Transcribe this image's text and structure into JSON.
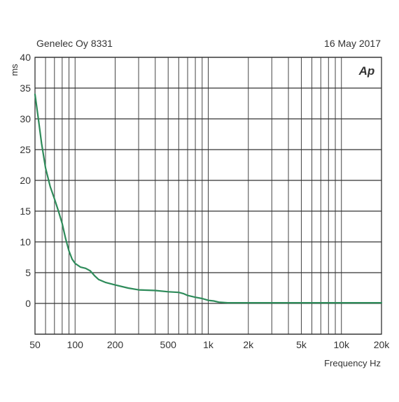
{
  "header": {
    "left": "Genelec Oy 8331",
    "right": "16 May 2017",
    "logo": "Ap"
  },
  "chart_data": {
    "type": "line",
    "title": "",
    "xlabel": "Frequency Hz",
    "ylabel": "ms",
    "xscale": "log",
    "xlim": [
      50,
      20000
    ],
    "ylim": [
      -5,
      40
    ],
    "grid": true,
    "legend": "none",
    "x_ticks": [
      {
        "value": 50,
        "label": "50"
      },
      {
        "value": 100,
        "label": "100"
      },
      {
        "value": 200,
        "label": "200"
      },
      {
        "value": 500,
        "label": "500"
      },
      {
        "value": 1000,
        "label": "1k"
      },
      {
        "value": 2000,
        "label": "2k"
      },
      {
        "value": 5000,
        "label": "5k"
      },
      {
        "value": 10000,
        "label": "10k"
      },
      {
        "value": 20000,
        "label": "20k"
      }
    ],
    "y_ticks": [
      0,
      5,
      10,
      15,
      20,
      25,
      30,
      35,
      40
    ],
    "series": [
      {
        "color": "#2e8b5a",
        "x": [
          50,
          53,
          56,
          60,
          65,
          70,
          75,
          80,
          85,
          90,
          95,
          100,
          110,
          120,
          130,
          140,
          150,
          170,
          200,
          250,
          300,
          400,
          500,
          600,
          650,
          700,
          800,
          900,
          1000,
          1100,
          1200,
          1400,
          2000,
          5000,
          10000,
          20000
        ],
        "y": [
          34,
          30,
          26,
          22,
          19,
          17,
          15,
          13,
          10.5,
          8.5,
          7.2,
          6.5,
          5.9,
          5.7,
          5.3,
          4.5,
          3.9,
          3.4,
          3.0,
          2.5,
          2.2,
          2.1,
          1.9,
          1.8,
          1.6,
          1.3,
          1.0,
          0.8,
          0.5,
          0.4,
          0.2,
          0.1,
          0.1,
          0.1,
          0.1,
          0.1
        ]
      }
    ]
  }
}
